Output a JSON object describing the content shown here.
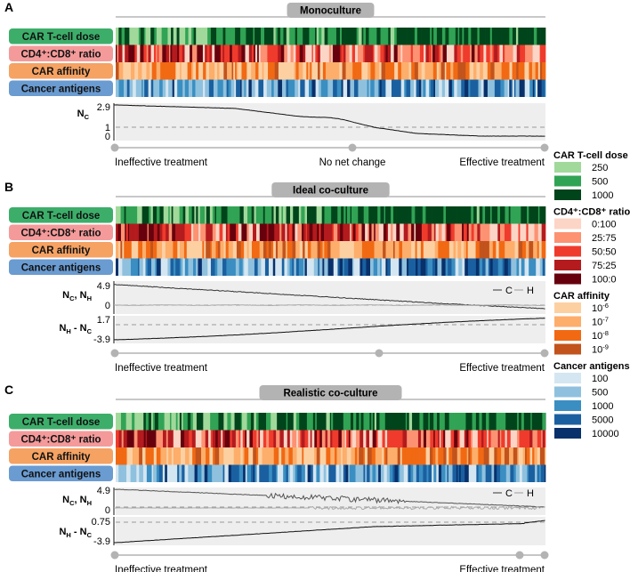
{
  "panels": [
    {
      "letter": "A",
      "title": "Monoculture",
      "row_labels": [
        "CAR T-cell dose",
        "CD4⁺:CD8⁺ ratio",
        "CAR affinity",
        "Cancer antigens"
      ],
      "plot_label_main": "N",
      "plot_label_sub": "C",
      "yticks": [
        "2.9",
        "1",
        "0"
      ],
      "axis_labels": [
        "Ineffective treatment",
        "No net change",
        "Effective treatment"
      ],
      "legend_marks": []
    },
    {
      "letter": "B",
      "title": "Ideal co-culture",
      "row_labels": [
        "CAR T-cell dose",
        "CD4⁺:CD8⁺ ratio",
        "CAR affinity",
        "Cancer antigens"
      ],
      "plot1_label": {
        "a": "N",
        "a_sub": "C",
        "sep": ", ",
        "b": "N",
        "b_sub": "H"
      },
      "plot1_yticks": [
        "4.9",
        "0"
      ],
      "plot2_label": {
        "a": "N",
        "a_sub": "H",
        "sep": " - ",
        "b": "N",
        "b_sub": "C"
      },
      "plot2_yticks": [
        "1.7",
        "-3.9"
      ],
      "legend_marks": [
        "C",
        "H"
      ],
      "axis_labels": [
        "Ineffective treatment",
        "Effective treatment"
      ]
    },
    {
      "letter": "C",
      "title": "Realistic co-culture",
      "row_labels": [
        "CAR T-cell dose",
        "CD4⁺:CD8⁺ ratio",
        "CAR affinity",
        "Cancer antigens"
      ],
      "plot1_label": {
        "a": "N",
        "a_sub": "C",
        "sep": ", ",
        "b": "N",
        "b_sub": "H"
      },
      "plot1_yticks": [
        "4.9",
        "0"
      ],
      "plot2_label": {
        "a": "N",
        "a_sub": "H",
        "sep": " - ",
        "b": "N",
        "b_sub": "C"
      },
      "plot2_yticks": [
        "0.75",
        "-3.9"
      ],
      "legend_marks": [
        "C",
        "H"
      ],
      "axis_labels": [
        "Ineffective treatment",
        "Effective treatment"
      ]
    }
  ],
  "legend": [
    {
      "title": "CAR T-cell dose",
      "items": [
        {
          "label": "250",
          "color": "#a1d99b"
        },
        {
          "label": "500",
          "color": "#31a354"
        },
        {
          "label": "1000",
          "color": "#00441b"
        }
      ]
    },
    {
      "title": "CD4⁺:CD8⁺ ratio",
      "items": [
        {
          "label": "0:100",
          "color": "#fcd5c6"
        },
        {
          "label": "25:75",
          "color": "#fc9272"
        },
        {
          "label": "50:50",
          "color": "#ef3b2c"
        },
        {
          "label": "75:25",
          "color": "#b31b1e"
        },
        {
          "label": "100:0",
          "color": "#67000d"
        }
      ]
    },
    {
      "title": "CAR affinity",
      "items": [
        {
          "label": "10",
          "sup": "-6",
          "color": "#fdd0a2"
        },
        {
          "label": "10",
          "sup": "-7",
          "color": "#fdae6b"
        },
        {
          "label": "10",
          "sup": "-8",
          "color": "#f16913"
        },
        {
          "label": "10",
          "sup": "-9",
          "color": "#c2531c"
        }
      ]
    },
    {
      "title": "Cancer antigens",
      "items": [
        {
          "label": "100",
          "color": "#d4e6f1"
        },
        {
          "label": "500",
          "color": "#8fc1de"
        },
        {
          "label": "1000",
          "color": "#3a8ec2"
        },
        {
          "label": "5000",
          "color": "#1a60a0"
        },
        {
          "label": "10000",
          "color": "#08306b"
        }
      ]
    }
  ],
  "colors": {
    "row_label_bg": [
      "#3cae6a",
      "#f49a9a",
      "#f5a263",
      "#6a9bd1"
    ],
    "title_bg": "#b3b3b3",
    "plot_bg": "#eeeeee",
    "axis_dot": "#b3b3b3"
  }
}
